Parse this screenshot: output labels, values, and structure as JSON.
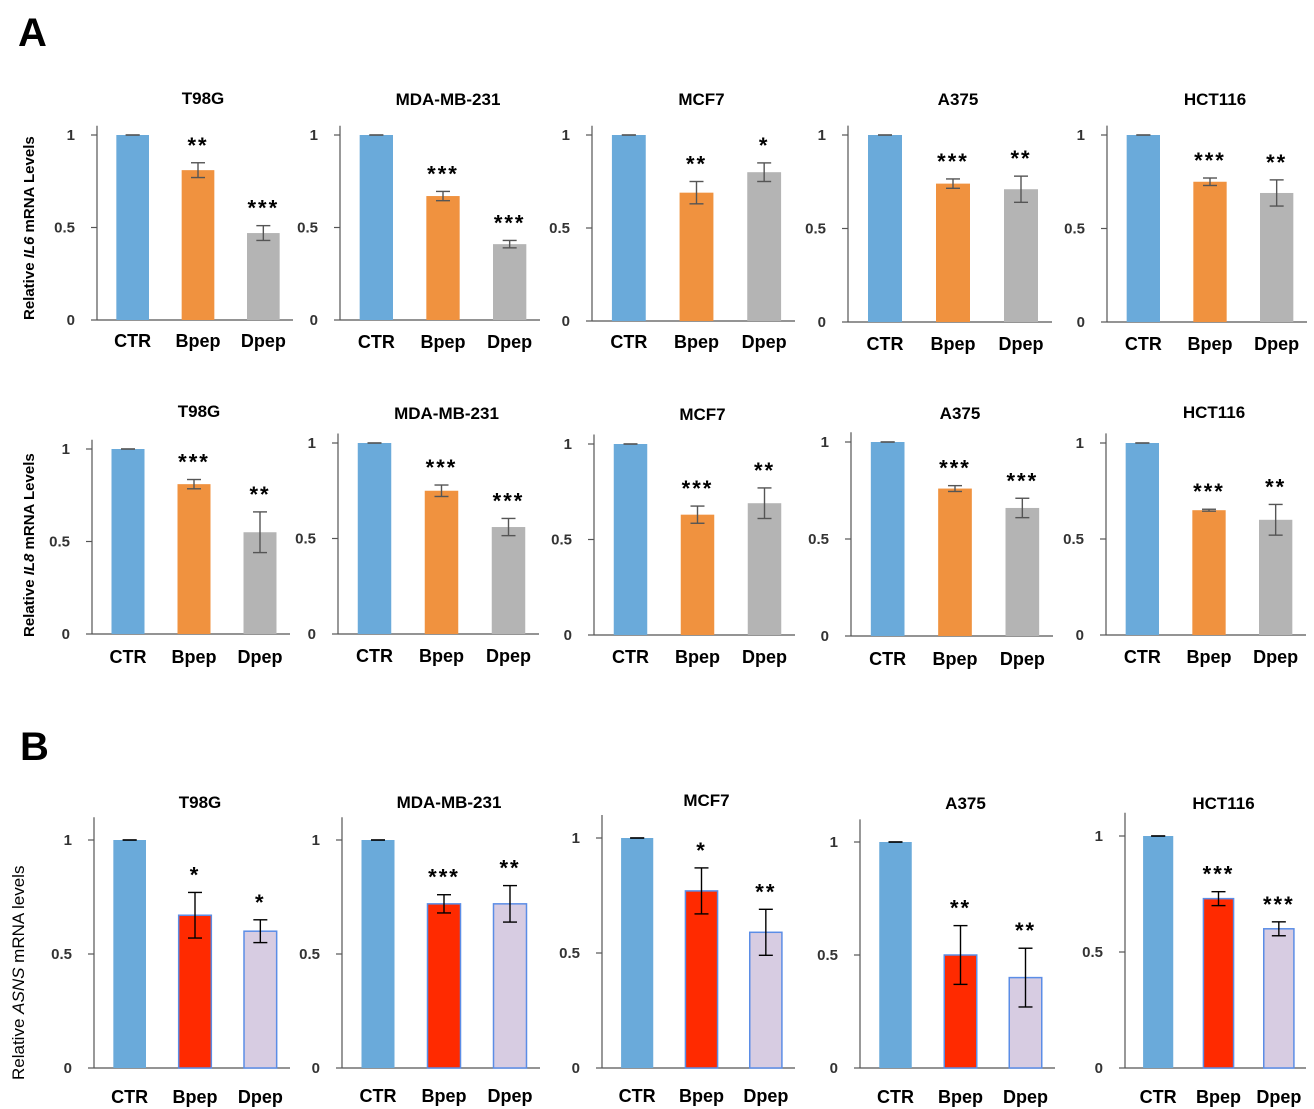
{
  "panels": {
    "A": "A",
    "B": "B",
    "y_title_il6": {
      "pre": "Relative ",
      "gene": "IL6",
      "post": " mRNA Levels"
    },
    "y_title_il8": {
      "pre": "Relative ",
      "gene": "IL8",
      "post": " mRNA Levels"
    },
    "y_title_asns": {
      "pre": "Relative ",
      "gene": "ASNS",
      "post": " mRNA levels"
    }
  },
  "colors": {
    "ctr": "#6aaada",
    "bpep_a": "#f0923f",
    "dpep_a": "#b4b4b4",
    "bpep_b": "#ff2a00",
    "dpep_b": "#d7cce2",
    "bar_edge_b": "#5b8de6"
  },
  "chart_data": [
    {
      "type": "bar",
      "row": "IL6",
      "title": "T98G",
      "categories": [
        "CTR",
        "Bpep",
        "Dpep"
      ],
      "values": [
        1.0,
        0.81,
        0.47
      ],
      "errors": [
        0.0,
        0.04,
        0.04
      ],
      "significance": [
        "",
        "**",
        "***"
      ],
      "ylim": [
        0,
        1.05
      ],
      "yticks": [
        "0",
        "0.5",
        "1"
      ]
    },
    {
      "type": "bar",
      "row": "IL6",
      "title": "MDA-MB-231",
      "categories": [
        "CTR",
        "Bpep",
        "Dpep"
      ],
      "values": [
        1.0,
        0.67,
        0.41
      ],
      "errors": [
        0.0,
        0.025,
        0.02
      ],
      "significance": [
        "",
        "***",
        "***"
      ],
      "ylim": [
        0,
        1.05
      ],
      "yticks": [
        "0",
        "0.5",
        "1"
      ]
    },
    {
      "type": "bar",
      "row": "IL6",
      "title": "MCF7",
      "categories": [
        "CTR",
        "Bpep",
        "Dpep"
      ],
      "values": [
        1.0,
        0.69,
        0.8
      ],
      "errors": [
        0.0,
        0.06,
        0.05
      ],
      "significance": [
        "",
        "**",
        "*"
      ],
      "ylim": [
        0,
        1.05
      ],
      "yticks": [
        "0",
        "0.5",
        "1"
      ]
    },
    {
      "type": "bar",
      "row": "IL6",
      "title": "A375",
      "categories": [
        "CTR",
        "Bpep",
        "Dpep"
      ],
      "values": [
        1.0,
        0.74,
        0.71
      ],
      "errors": [
        0.0,
        0.025,
        0.07
      ],
      "significance": [
        "",
        "***",
        "**"
      ],
      "ylim": [
        0,
        1.05
      ],
      "yticks": [
        "0",
        "0.5",
        "1"
      ]
    },
    {
      "type": "bar",
      "row": "IL6",
      "title": "HCT116",
      "categories": [
        "CTR",
        "Bpep",
        "Dpep"
      ],
      "values": [
        1.0,
        0.75,
        0.69
      ],
      "errors": [
        0.0,
        0.02,
        0.07
      ],
      "significance": [
        "",
        "***",
        "**"
      ],
      "ylim": [
        0,
        1.05
      ],
      "yticks": [
        "0",
        "0.5",
        "1"
      ]
    },
    {
      "type": "bar",
      "row": "IL8",
      "title": "T98G",
      "categories": [
        "CTR",
        "Bpep",
        "Dpep"
      ],
      "values": [
        1.0,
        0.81,
        0.55
      ],
      "errors": [
        0.0,
        0.025,
        0.11
      ],
      "significance": [
        "",
        "***",
        "**"
      ],
      "ylim": [
        0,
        1.05
      ],
      "yticks": [
        "0",
        "0.5",
        "1"
      ]
    },
    {
      "type": "bar",
      "row": "IL8",
      "title": "MDA-MB-231",
      "categories": [
        "CTR",
        "Bpep",
        "Dpep"
      ],
      "values": [
        1.0,
        0.75,
        0.56
      ],
      "errors": [
        0.0,
        0.03,
        0.045
      ],
      "significance": [
        "",
        "***",
        "***"
      ],
      "ylim": [
        0,
        1.05
      ],
      "yticks": [
        "0",
        "0.5",
        "1"
      ]
    },
    {
      "type": "bar",
      "row": "IL8",
      "title": "MCF7",
      "categories": [
        "CTR",
        "Bpep",
        "Dpep"
      ],
      "values": [
        1.0,
        0.63,
        0.69
      ],
      "errors": [
        0.0,
        0.045,
        0.08
      ],
      "significance": [
        "",
        "***",
        "**"
      ],
      "ylim": [
        0,
        1.05
      ],
      "yticks": [
        "0",
        "0.5",
        "1"
      ]
    },
    {
      "type": "bar",
      "row": "IL8",
      "title": "A375",
      "categories": [
        "CTR",
        "Bpep",
        "Dpep"
      ],
      "values": [
        1.0,
        0.76,
        0.66
      ],
      "errors": [
        0.0,
        0.015,
        0.05
      ],
      "significance": [
        "",
        "***",
        "***"
      ],
      "ylim": [
        0,
        1.05
      ],
      "yticks": [
        "0",
        "0.5",
        "1"
      ]
    },
    {
      "type": "bar",
      "row": "IL8",
      "title": "HCT116",
      "categories": [
        "CTR",
        "Bpep",
        "Dpep"
      ],
      "values": [
        1.0,
        0.65,
        0.6
      ],
      "errors": [
        0.0,
        0.005,
        0.08
      ],
      "significance": [
        "",
        "***",
        "**"
      ],
      "ylim": [
        0,
        1.05
      ],
      "yticks": [
        "0",
        "0.5",
        "1"
      ]
    },
    {
      "type": "bar",
      "row": "ASNS",
      "title": "T98G",
      "categories": [
        "CTR",
        "Bpep",
        "Dpep"
      ],
      "values": [
        1.0,
        0.67,
        0.6
      ],
      "errors": [
        0.0,
        0.1,
        0.05
      ],
      "significance": [
        "",
        "*",
        "*"
      ],
      "ylim": [
        0,
        1.1
      ],
      "yticks": [
        "0",
        "0.5",
        "1"
      ]
    },
    {
      "type": "bar",
      "row": "ASNS",
      "title": "MDA-MB-231",
      "categories": [
        "CTR",
        "Bpep",
        "Dpep"
      ],
      "values": [
        1.0,
        0.72,
        0.72
      ],
      "errors": [
        0.0,
        0.04,
        0.08
      ],
      "significance": [
        "",
        "***",
        "**"
      ],
      "ylim": [
        0,
        1.1
      ],
      "yticks": [
        "0",
        "0.5",
        "1"
      ]
    },
    {
      "type": "bar",
      "row": "ASNS",
      "title": "MCF7",
      "categories": [
        "CTR",
        "Bpep",
        "Dpep"
      ],
      "values": [
        1.0,
        0.77,
        0.59
      ],
      "errors": [
        0.0,
        0.1,
        0.1
      ],
      "significance": [
        "",
        "*",
        "**"
      ],
      "ylim": [
        0,
        1.1
      ],
      "yticks": [
        "0",
        "0.5",
        "1"
      ]
    },
    {
      "type": "bar",
      "row": "ASNS",
      "title": "A375",
      "categories": [
        "CTR",
        "Bpep",
        "Dpep"
      ],
      "values": [
        1.0,
        0.5,
        0.4
      ],
      "errors": [
        0.0,
        0.13,
        0.13
      ],
      "significance": [
        "",
        "**",
        "**"
      ],
      "ylim": [
        0,
        1.1
      ],
      "yticks": [
        "0",
        "0.5",
        "1"
      ]
    },
    {
      "type": "bar",
      "row": "ASNS",
      "title": "HCT116",
      "categories": [
        "CTR",
        "Bpep",
        "Dpep"
      ],
      "values": [
        1.0,
        0.73,
        0.6
      ],
      "errors": [
        0.0,
        0.03,
        0.03
      ],
      "significance": [
        "",
        "***",
        "***"
      ],
      "ylim": [
        0,
        1.1
      ],
      "yticks": [
        "0",
        "0.5",
        "1"
      ]
    }
  ]
}
